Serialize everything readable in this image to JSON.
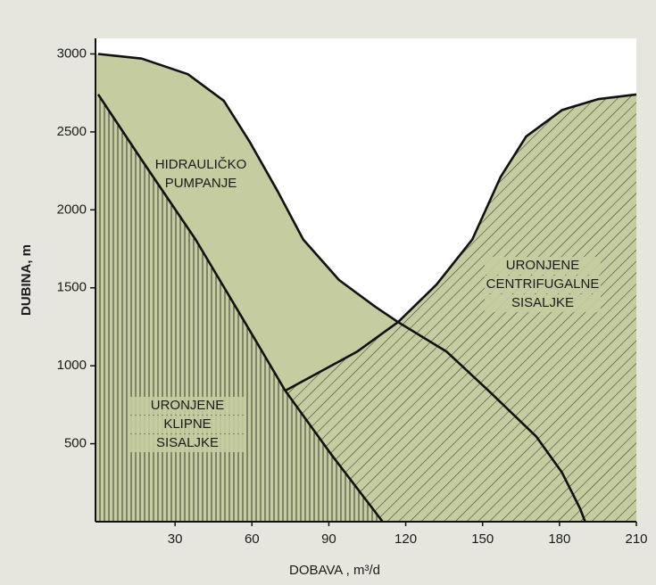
{
  "chart_data": {
    "type": "line",
    "xlabel": "DOBAVA , m³/d",
    "ylabel": "DUBINA,  m",
    "xlim": [
      0,
      210
    ],
    "ylim": [
      0,
      3100
    ],
    "xticks": [
      30,
      60,
      90,
      120,
      150,
      180,
      210
    ],
    "yticks": [
      500,
      1000,
      1500,
      2000,
      2500,
      3000
    ],
    "fill_color": "#c4cca0",
    "series": [
      {
        "color": "#111111",
        "x": [
          0,
          17,
          35,
          49,
          59,
          70,
          80,
          94,
          108,
          117,
          136,
          153,
          171,
          181,
          188,
          190
        ],
        "values": [
          3000,
          2970,
          2870,
          2700,
          2440,
          2120,
          1810,
          1550,
          1380,
          1280,
          1090,
          830,
          545,
          315,
          86,
          0
        ]
      },
      {
        "color": "#111111",
        "x": [
          73,
          101,
          117,
          132,
          146,
          157,
          167,
          181,
          195,
          210
        ],
        "values": [
          840,
          1090,
          1280,
          1520,
          1810,
          2210,
          2470,
          2640,
          2710,
          2740
        ]
      },
      {
        "color": "#111111",
        "x": [
          0,
          17,
          38,
          59,
          73,
          91,
          111
        ],
        "values": [
          2740,
          2320,
          1810,
          1230,
          840,
          430,
          0
        ]
      }
    ],
    "annotations": [
      [
        "HIDRAULIČKO",
        "PUMPANJE"
      ],
      [
        "URONJENE",
        "CENTRIFUGALNE",
        "SISALJKE"
      ],
      [
        "URONJENE",
        "KLIPNE",
        "SISALJKE"
      ]
    ]
  }
}
